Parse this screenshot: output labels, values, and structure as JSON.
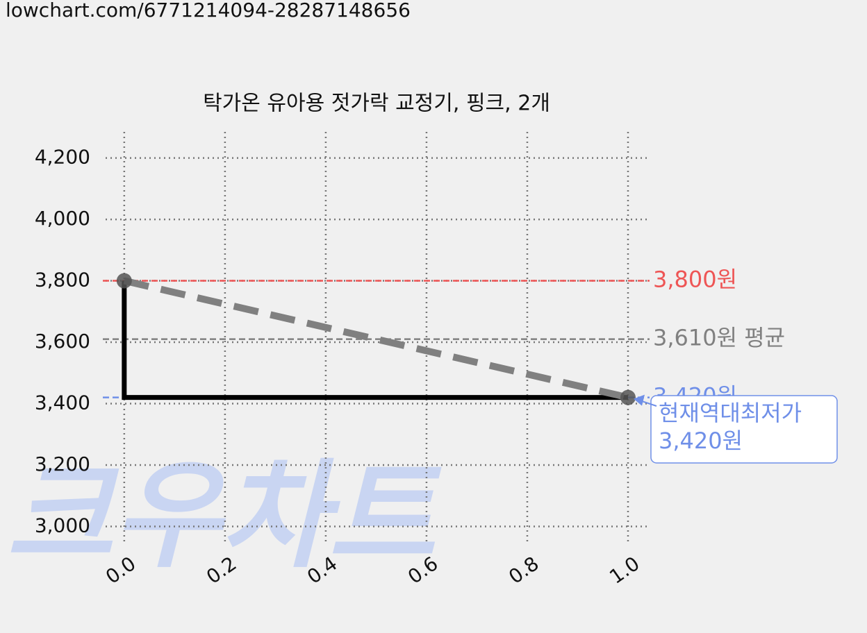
{
  "source_url": "lowchart.com/6771214094-28287148656",
  "chart_data": {
    "type": "line",
    "title": "탁가온 유아용 젓가락 교정기, 핑크, 2개",
    "watermark": "크우차트",
    "xlim": [
      -0.037,
      1.04
    ],
    "ylim": [
      2940,
      4285
    ],
    "xticks": [
      {
        "value": 0,
        "label": "0.0"
      },
      {
        "value": 0.2,
        "label": "0.2"
      },
      {
        "value": 0.4,
        "label": "0.4"
      },
      {
        "value": 0.6,
        "label": "0.6"
      },
      {
        "value": 0.8,
        "label": "0.8"
      },
      {
        "value": 1,
        "label": "1.0"
      }
    ],
    "yticks": [
      {
        "value": 3000,
        "label": "3,000"
      },
      {
        "value": 3200,
        "label": "3,200"
      },
      {
        "value": 3400,
        "label": "3,400"
      },
      {
        "value": 3600,
        "label": "3,600"
      },
      {
        "value": 3800,
        "label": "3,800"
      },
      {
        "value": 4000,
        "label": "4,000"
      },
      {
        "value": 4200,
        "label": "4,200"
      }
    ],
    "grid": true,
    "series": [
      {
        "color": "#000000",
        "style": "solid",
        "x": [
          0,
          0,
          1
        ],
        "values": [
          3800,
          3420,
          3420
        ]
      },
      {
        "color": "#808080",
        "style": "dashed",
        "markers": true,
        "x": [
          0,
          1
        ],
        "values": [
          3800,
          3420
        ]
      }
    ],
    "reference_lines": [
      {
        "value": 3800,
        "label": "3,800원",
        "color": "#ee5555"
      },
      {
        "value": 3610,
        "label": "3,610원 평균",
        "color": "#808080"
      },
      {
        "value": 3420,
        "label": "3,420원",
        "color": "#6f8fe8"
      }
    ],
    "annotation": {
      "x": 1,
      "y": 3420,
      "lines": [
        "현재역대최저가",
        "3,420원"
      ],
      "color": "#6f8fe8"
    }
  }
}
